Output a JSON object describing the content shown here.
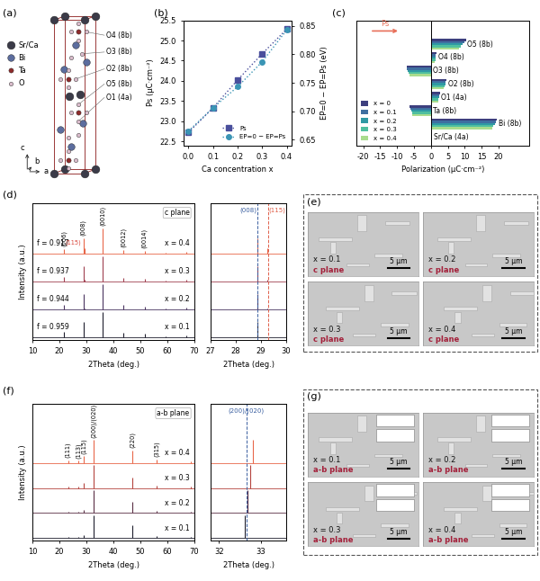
{
  "panel_labels": [
    "(a)",
    "(b)",
    "(c)",
    "(d)",
    "(e)",
    "(f)",
    "(g)"
  ],
  "structure": {
    "legend": [
      {
        "name": "Sr/Ca",
        "color": "#3b3b48"
      },
      {
        "name": "Bi",
        "color": "#5c6d9e"
      },
      {
        "name": "Ta",
        "color": "#8e2b2b"
      },
      {
        "name": "O",
        "color": "#d9bccb"
      }
    ],
    "sites": [
      "O4 (8b)",
      "O3 (8b)",
      "O2 (8b)",
      "O5 (8b)",
      "O1 (4a)"
    ],
    "axes": [
      "c",
      "b",
      "a"
    ]
  },
  "chart_data": [
    {
      "type": "line",
      "x": [
        0.0,
        0.1,
        0.2,
        0.3,
        0.4
      ],
      "xlabel": "Ca concentration x",
      "ylabel": "Ps (μC·cm⁻²)",
      "y2label": "EP=0 − EP=Ps (eV)",
      "xlim": [
        -0.02,
        0.42
      ],
      "xticks": [
        0.0,
        0.1,
        0.2,
        0.3,
        0.4
      ],
      "ylim": [
        22.4,
        25.5
      ],
      "yticks": [
        22.5,
        23.0,
        23.5,
        24.0,
        24.5,
        25.0,
        25.5
      ],
      "y2lim": [
        0.64,
        0.86
      ],
      "y2ticks": [
        0.65,
        {
          "value": 0.7,
          "label": "0.70"
        },
        0.75,
        {
          "value": 0.8,
          "label": "0.80"
        },
        0.85
      ],
      "legend": "lower right",
      "series": [
        {
          "name": "Ps",
          "color": "#4a4f9c",
          "marker": "square",
          "line_style": "dotted",
          "values": [
            22.72,
            23.33,
            24.02,
            24.67,
            25.28
          ]
        },
        {
          "name": "EP=0 − EP=Ps",
          "color": "#3b95b5",
          "marker": "circle",
          "line_style": "dotted",
          "axis": "y2",
          "values": [
            0.665,
            0.706,
            0.743,
            0.787,
            0.843
          ]
        }
      ]
    },
    {
      "type": "bar",
      "orientation": "horizontal",
      "categories": [
        "Sr/Ca (4a)",
        "Bi (8b)",
        "Ta (8b)",
        "O1 (4a)",
        "O2 (8b)",
        "O3 (8b)",
        "O4 (8b)",
        "O5 (8b)"
      ],
      "xlabel": "Polarization (μC·cm⁻²)",
      "xlim": [
        -22,
        29
      ],
      "xticks": [
        -20,
        -15,
        -10,
        -5,
        0,
        5,
        10,
        15,
        20
      ],
      "tick_labels": "x",
      "legend": "lower left",
      "annotations": [
        "Ps"
      ],
      "series": [
        {
          "name": "x = 0",
          "color": "#3d3f7e",
          "values": [
            0.3,
            19.5,
            -6.2,
            2.6,
            4.6,
            -7.2,
            1.6,
            10.3
          ]
        },
        {
          "name": "x = 0.1",
          "color": "#3f6fa0",
          "values": [
            0.3,
            19.2,
            -6.0,
            2.5,
            4.4,
            -7.0,
            1.5,
            9.8
          ]
        },
        {
          "name": "x = 0.2",
          "color": "#2f99a4",
          "values": [
            0.3,
            18.8,
            -5.8,
            2.4,
            4.2,
            -6.8,
            1.4,
            9.3
          ]
        },
        {
          "name": "x = 0.3",
          "color": "#4fbf9f",
          "values": [
            0.3,
            18.4,
            -5.6,
            2.3,
            4.0,
            -6.6,
            1.3,
            8.8
          ]
        },
        {
          "name": "x = 0.4",
          "color": "#a9dc8d",
          "values": [
            0.2,
            18.0,
            -5.4,
            2.2,
            3.8,
            -6.4,
            1.2,
            8.3
          ]
        }
      ]
    },
    {
      "type": "stem",
      "plane_label": "c plane",
      "xlabel": "2Theta (deg.)",
      "ylabel": "Intensity (a.u.)",
      "xlim": [
        10,
        70
      ],
      "xticks": [
        10,
        20,
        30,
        40,
        50,
        60,
        70
      ],
      "ylim": [
        -0.1,
        5.3
      ],
      "tick_labels": "x",
      "peak_labels": [
        {
          "x": 21.6,
          "label": "(006)",
          "color": "#000000"
        },
        {
          "x": 28.85,
          "label": "(008)",
          "color": "#000000"
        },
        {
          "x": 29.25,
          "label": "(115)",
          "color": "#d9453a"
        },
        {
          "x": 36.1,
          "label": "(0010)",
          "color": "#000000"
        },
        {
          "x": 43.6,
          "label": "(0012)",
          "color": "#000000"
        },
        {
          "x": 51.5,
          "label": "(0014)",
          "color": "#000000"
        }
      ],
      "series": [
        {
          "name": "x = 0.1",
          "annotation": "f = 0.959",
          "color": "#1f1f2e",
          "peaks": [
            21.6,
            28.85,
            29.25,
            36.1,
            43.6,
            51.5,
            59.4,
            67.0
          ],
          "intensities": [
            0.22,
            0.6,
            0.02,
            1.0,
            0.18,
            0.14,
            0.03,
            0.08
          ]
        },
        {
          "name": "x = 0.2",
          "annotation": "f = 0.944",
          "color": "#4a3560",
          "peaks": [
            21.6,
            28.85,
            29.25,
            36.1,
            43.6,
            51.5,
            59.4,
            67.0
          ],
          "intensities": [
            0.2,
            0.62,
            0.04,
            1.0,
            0.17,
            0.13,
            0.03,
            0.08
          ]
        },
        {
          "name": "x = 0.3",
          "annotation": "f = 0.937",
          "color": "#a04050",
          "peaks": [
            21.6,
            28.85,
            29.25,
            36.1,
            43.6,
            51.5,
            59.4,
            67.0
          ],
          "intensities": [
            0.2,
            0.63,
            0.08,
            1.0,
            0.16,
            0.12,
            0.03,
            0.07
          ]
        },
        {
          "name": "x = 0.4",
          "annotation": "f = 0.917",
          "color": "#e8684a",
          "peaks": [
            21.6,
            28.85,
            29.25,
            36.1,
            43.6,
            51.5,
            59.4,
            67.0
          ],
          "intensities": [
            0.18,
            0.62,
            0.22,
            1.0,
            0.15,
            0.12,
            0.03,
            0.07
          ]
        }
      ],
      "inset": {
        "xlim": [
          27,
          30
        ],
        "xticks": [
          27,
          28,
          29,
          30
        ],
        "reference_lines": [
          {
            "x": 28.85,
            "label": "(008)",
            "color": "#3a5fa0"
          },
          {
            "x": 29.3,
            "label": "(115)",
            "color": "#e0604a"
          }
        ]
      }
    },
    {
      "type": "stem",
      "plane_label": "a-b plane",
      "xlabel": "2Theta (deg.)",
      "ylabel": "Intensity (a.u.)",
      "xlim": [
        10,
        70
      ],
      "xticks": [
        10,
        20,
        30,
        40,
        50,
        60,
        70
      ],
      "ylim": [
        -0.1,
        5.9
      ],
      "tick_labels": "x",
      "peak_labels": [
        {
          "x": 23.2,
          "label": "(111)",
          "color": "#000000"
        },
        {
          "x": 27.1,
          "label": "(113)",
          "color": "#000000"
        },
        {
          "x": 29.0,
          "label": "(115)",
          "color": "#000000"
        },
        {
          "x": 32.7,
          "label": "(200)/(020)",
          "color": "#000000"
        },
        {
          "x": 46.9,
          "label": "(220)",
          "color": "#000000"
        },
        {
          "x": 55.9,
          "label": "(315)",
          "color": "#000000"
        }
      ],
      "series": [
        {
          "name": "x = 0.1",
          "color": "#1f1f2e",
          "peaks": [
            23.2,
            27.1,
            29.0,
            32.62,
            46.85,
            55.9,
            68.8
          ],
          "intensities": [
            0.05,
            0.03,
            0.12,
            1.0,
            0.55,
            0.08,
            0.05
          ]
        },
        {
          "name": "x = 0.2",
          "color": "#5a2f45",
          "peaks": [
            23.2,
            27.1,
            29.0,
            32.68,
            46.9,
            55.9,
            68.8
          ],
          "intensities": [
            0.06,
            0.04,
            0.15,
            1.0,
            0.5,
            0.1,
            0.05
          ]
        },
        {
          "name": "x = 0.3",
          "color": "#b5453f",
          "peaks": [
            23.2,
            27.1,
            29.0,
            32.74,
            46.95,
            55.95,
            68.8
          ],
          "intensities": [
            0.08,
            0.06,
            0.22,
            1.0,
            0.45,
            0.12,
            0.05
          ]
        },
        {
          "name": "x = 0.4",
          "color": "#e8684a",
          "peaks": [
            23.2,
            27.1,
            29.0,
            32.8,
            47.0,
            56.0,
            68.8
          ],
          "intensities": [
            0.12,
            0.1,
            0.3,
            1.0,
            0.55,
            0.15,
            0.06
          ]
        }
      ],
      "inset": {
        "xlim": [
          31.8,
          33.6
        ],
        "xticks": [
          32,
          33
        ],
        "reference_lines": [
          {
            "x": 32.65,
            "label": "(200)/(020)",
            "color": "#3a5fa0"
          }
        ]
      }
    }
  ],
  "sem": {
    "e": [
      {
        "label": "x = 0.1",
        "plane": "c plane",
        "scale_bar": "5 μm"
      },
      {
        "label": "x = 0.2",
        "plane": "c plane",
        "scale_bar": "5 μm"
      },
      {
        "label": "x = 0.3",
        "plane": "c plane",
        "scale_bar": "5 μm"
      },
      {
        "label": "x = 0.4",
        "plane": "c plane",
        "scale_bar": "5 μm"
      }
    ],
    "g": [
      {
        "label": "x = 0.1",
        "plane": "a-b plane",
        "scale_bar": "5 μm"
      },
      {
        "label": "x = 0.2",
        "plane": "a-b plane",
        "scale_bar": "5 μm"
      },
      {
        "label": "x = 0.3",
        "plane": "a-b plane",
        "scale_bar": "5 μm"
      },
      {
        "label": "x = 0.4",
        "plane": "a-b plane",
        "scale_bar": "5 μm"
      }
    ]
  }
}
